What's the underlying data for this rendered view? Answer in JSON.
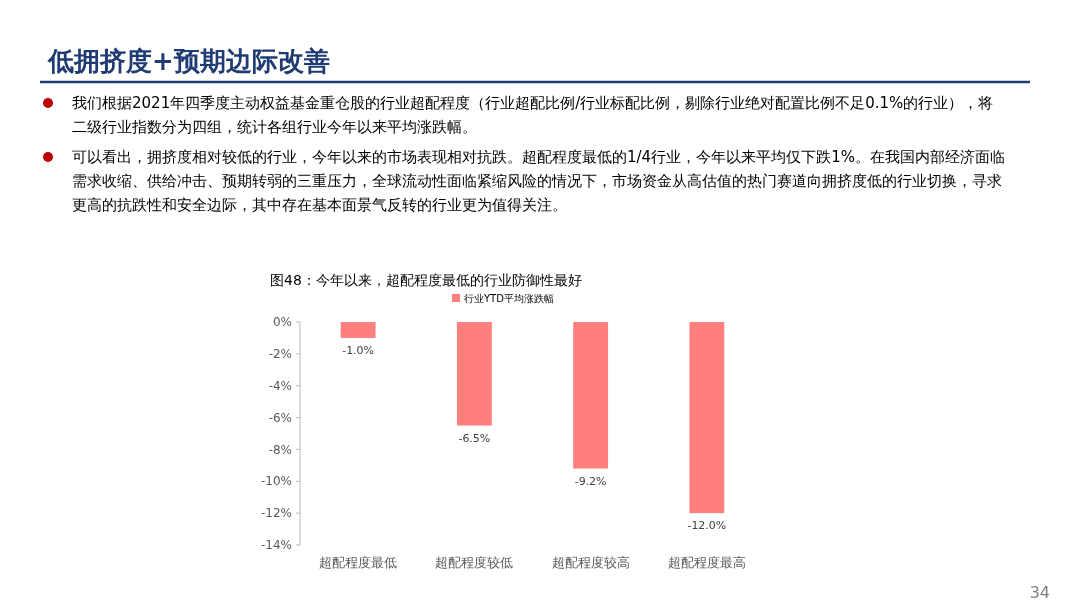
{
  "chart_data": {
    "type": "bar",
    "title": "图48：今年以来，超配程度最低的行业防御性最好",
    "subtitle": "低拥挤度+预期边际改善",
    "annotations": [
      "我们根据2021年四季度主动权益基金重仓股的行业超配程度（行业超配比例/行业标配比例，剔除行业绝对配置比例不足0.1%的行业），将二级行业指数分为四组，统计各组行业今年以来平均涨跌幅。",
      "可以看出，拥挤度相对较低的行业，今年以来的市场表现相对抗跌。超配程度最低的1/4行业，今年以来平均仅下跌1%。在我国内部经济面临需求收缩、供给冲击、预期转弱的三重压力，全球流动性面临紧缩风险的情况下，市场资金从高估值的热门赛道向拥挤度低的行业切换，寻求更高的抗跌性和安全边际，其中存在基本面景气反转的行业更为值得关注。",
      "34"
    ],
    "categories": [
      "超配程度最低",
      "超配程度较低",
      "超配程度较高",
      "超配程度最高"
    ],
    "series": [
      {
        "name": "行业YTD平均涨跌幅",
        "color": "#ff7f7f",
        "values": [
          -1.0,
          -6.5,
          -9.2,
          -12.0
        ]
      }
    ],
    "value_labels": [
      "-1.0%",
      "-6.5%",
      "-9.2%",
      "-12.0%"
    ],
    "ylim": [
      -14,
      0
    ],
    "yticks": [
      {
        "value": 0,
        "label": "0%"
      },
      {
        "value": -2,
        "label": "-2%"
      },
      {
        "value": -4,
        "label": "-4%"
      },
      {
        "value": -6,
        "label": "-6%"
      },
      {
        "value": -8,
        "label": "-8%"
      },
      {
        "value": -10,
        "label": "-10%"
      },
      {
        "value": -12,
        "label": "-12%"
      },
      {
        "value": -14,
        "label": "-14%"
      }
    ],
    "legend": "top",
    "grid": false
  }
}
